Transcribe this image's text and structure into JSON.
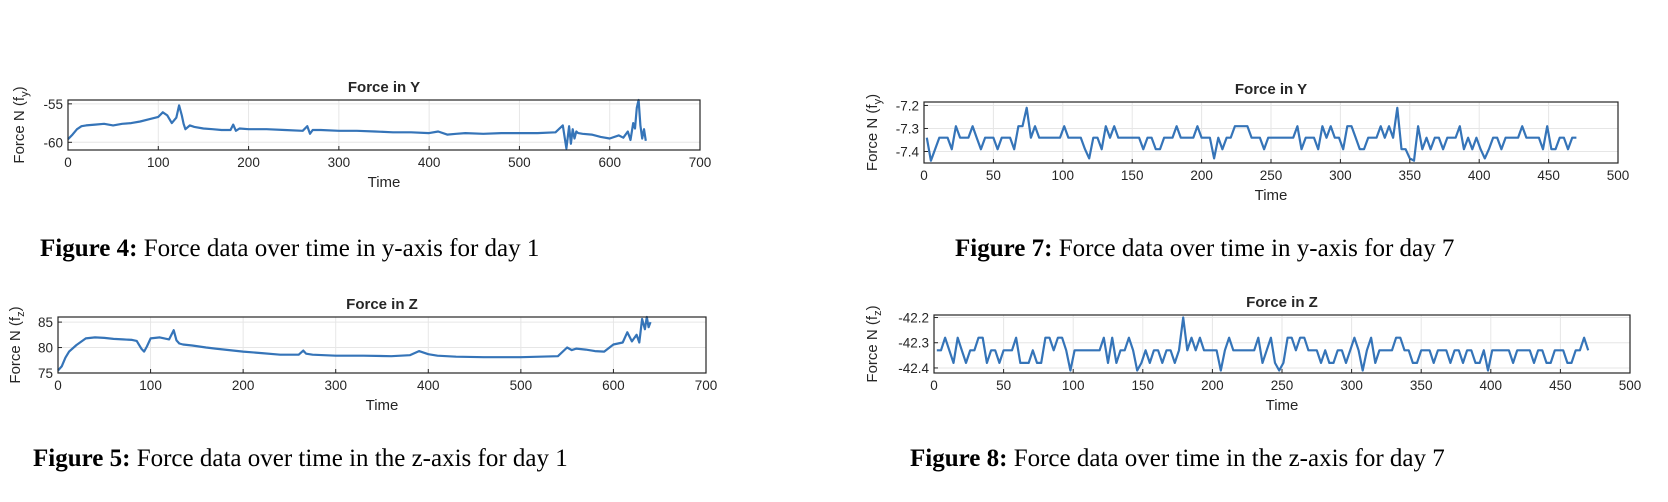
{
  "chart_data": [
    {
      "id": "fig4",
      "type": "line",
      "title": "Force in Y",
      "xlabel": "Time",
      "ylabel_main": "Force N (f",
      "ylabel_sub": "y",
      "ylabel_close": ")",
      "xlim": [
        0,
        700
      ],
      "ylim": [
        -61,
        -54.5
      ],
      "xticks": [
        0,
        100,
        200,
        300,
        400,
        500,
        600,
        700
      ],
      "yticks": [
        -55,
        -60
      ],
      "color": "#3574b8",
      "x": [
        0,
        5,
        10,
        15,
        20,
        30,
        40,
        50,
        60,
        70,
        80,
        90,
        100,
        105,
        110,
        115,
        120,
        123,
        126,
        128,
        130,
        135,
        140,
        150,
        160,
        170,
        180,
        183,
        186,
        190,
        200,
        220,
        240,
        260,
        265,
        268,
        271,
        280,
        300,
        320,
        340,
        360,
        380,
        400,
        410,
        420,
        430,
        440,
        460,
        480,
        500,
        520,
        540,
        548,
        552,
        555,
        557,
        559,
        561,
        563,
        565,
        570,
        580,
        590,
        600,
        610,
        615,
        620,
        623,
        626,
        628,
        630,
        632,
        634,
        636,
        638,
        640
      ],
      "y": [
        -59.6,
        -59,
        -58.3,
        -57.9,
        -57.8,
        -57.7,
        -57.6,
        -57.8,
        -57.6,
        -57.5,
        -57.3,
        -57,
        -56.7,
        -56.1,
        -56.5,
        -57.5,
        -56.8,
        -55.2,
        -56.5,
        -57.6,
        -58.3,
        -57.8,
        -58,
        -58.2,
        -58.3,
        -58.4,
        -58.4,
        -57.7,
        -58.5,
        -58.2,
        -58.3,
        -58.3,
        -58.4,
        -58.5,
        -57.9,
        -58.9,
        -58.4,
        -58.4,
        -58.5,
        -58.5,
        -58.6,
        -58.7,
        -58.7,
        -58.8,
        -58.6,
        -59,
        -58.9,
        -58.8,
        -58.9,
        -58.8,
        -58.8,
        -58.8,
        -58.7,
        -57.8,
        -60.8,
        -57.9,
        -60.2,
        -58.3,
        -59.5,
        -58.6,
        -58.8,
        -58.9,
        -59,
        -59.3,
        -59.5,
        -59.1,
        -59.4,
        -58.6,
        -59.7,
        -57.5,
        -58.2,
        -55.5,
        -54.5,
        -57.8,
        -59.5,
        -58.3,
        -59.8
      ]
    },
    {
      "id": "fig5",
      "type": "line",
      "title": "Force in Z",
      "xlabel": "Time",
      "ylabel_main": "Force N (f",
      "ylabel_sub": "z",
      "ylabel_close": ")",
      "xlim": [
        0,
        700
      ],
      "ylim": [
        75,
        86
      ],
      "xticks": [
        0,
        100,
        200,
        300,
        400,
        500,
        600,
        700
      ],
      "yticks": [
        85,
        80,
        75
      ],
      "color": "#3574b8",
      "x": [
        0,
        4,
        8,
        12,
        20,
        30,
        40,
        50,
        60,
        70,
        80,
        85,
        90,
        93,
        96,
        100,
        110,
        120,
        125,
        128,
        131,
        135,
        145,
        160,
        170,
        180,
        200,
        220,
        240,
        260,
        265,
        268,
        275,
        300,
        330,
        360,
        380,
        390,
        400,
        410,
        430,
        460,
        500,
        540,
        550,
        555,
        560,
        570,
        580,
        590,
        600,
        610,
        615,
        620,
        625,
        628,
        631,
        634,
        636,
        638,
        640
      ],
      "y": [
        75.5,
        76.3,
        78,
        79.2,
        80.5,
        81.8,
        82,
        81.9,
        81.7,
        81.6,
        81.5,
        81.3,
        79.8,
        79.2,
        80.2,
        81.8,
        82,
        81.6,
        83.4,
        81.4,
        80.8,
        80.6,
        80.4,
        80,
        79.8,
        79.6,
        79.2,
        78.9,
        78.6,
        78.6,
        79.4,
        78.8,
        78.6,
        78.4,
        78.4,
        78.3,
        78.5,
        79.3,
        78.7,
        78.4,
        78.2,
        78.1,
        78.1,
        78.3,
        80,
        79.5,
        79.8,
        79.6,
        79.3,
        79.2,
        80.6,
        81,
        83,
        81.2,
        82.5,
        81,
        85.6,
        83.6,
        86,
        84,
        85
      ]
    },
    {
      "id": "fig7",
      "type": "line",
      "title": "Force in Y",
      "xlabel": "Time",
      "ylabel_main": "Force N (f",
      "ylabel_sub": "y",
      "ylabel_close": ")",
      "xlim": [
        0,
        500
      ],
      "ylim": [
        -7.45,
        -7.185
      ],
      "xticks": [
        0,
        50,
        100,
        150,
        200,
        250,
        300,
        350,
        400,
        450,
        500
      ],
      "yticks": [
        -7.2,
        -7.3,
        -7.4
      ],
      "color": "#3574b8",
      "baseline": -7.34,
      "high": -7.29,
      "low": -7.39,
      "start": 2,
      "end": 471,
      "step": 3,
      "spikes": [
        {
          "x": 5,
          "v": -7.44
        },
        {
          "x": 75,
          "v": -7.21
        },
        {
          "x": 343,
          "v": -7.21
        },
        {
          "x": 355,
          "v": -7.44
        },
        {
          "x": 352,
          "v": -7.43
        },
        {
          "x": 210,
          "v": -7.43
        },
        {
          "x": 120,
          "v": -7.43
        },
        {
          "x": 405,
          "v": -7.43
        }
      ],
      "seed": 7
    },
    {
      "id": "fig8",
      "type": "line",
      "title": "Force in Z",
      "xlabel": "Time",
      "ylabel_main": "Force N (f",
      "ylabel_sub": "z",
      "ylabel_close": ")",
      "xlim": [
        0,
        500
      ],
      "ylim": [
        -42.42,
        -42.19
      ],
      "xticks": [
        0,
        50,
        100,
        150,
        200,
        250,
        300,
        350,
        400,
        450,
        500
      ],
      "yticks": [
        -42.2,
        -42.3,
        -42.4
      ],
      "color": "#3574b8",
      "baseline": -42.33,
      "high": -42.28,
      "low": -42.38,
      "start": 2,
      "end": 471,
      "step": 3,
      "spikes": [
        {
          "x": 181,
          "v": -42.2
        },
        {
          "x": 100,
          "v": -42.41
        },
        {
          "x": 148,
          "v": -42.41
        },
        {
          "x": 208,
          "v": -42.41
        },
        {
          "x": 248,
          "v": -42.41
        },
        {
          "x": 310,
          "v": -42.41
        },
        {
          "x": 400,
          "v": -42.41
        }
      ],
      "seed": 13
    }
  ],
  "captions": {
    "fig4": {
      "label": "Figure 4:",
      "text": " Force data over time in y-axis for day 1"
    },
    "fig5": {
      "label": "Figure 5:",
      "text": " Force data over time in the z-axis for day 1"
    },
    "fig7": {
      "label": "Figure 7:",
      "text": " Force data over time in y-axis for day 7"
    },
    "fig8": {
      "label": "Figure 8:",
      "text": " Force data over time in the z-axis for day 7"
    }
  }
}
